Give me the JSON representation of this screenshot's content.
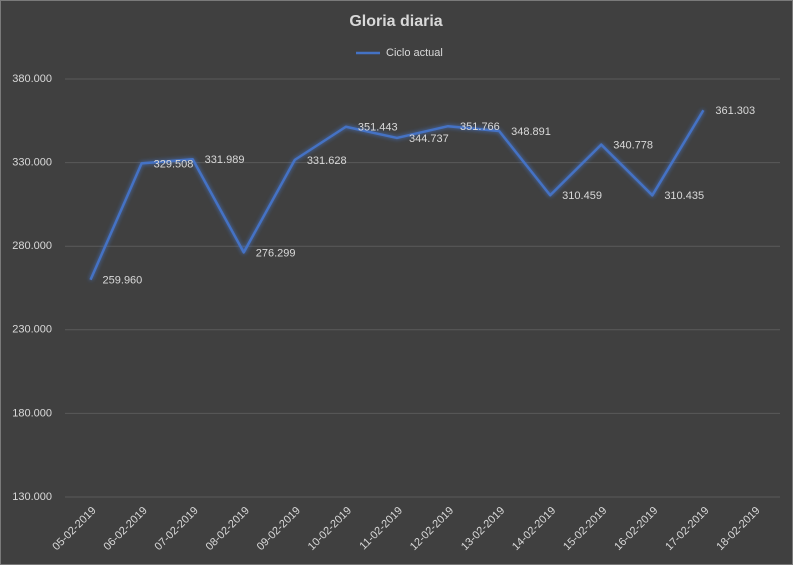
{
  "chart_data": {
    "type": "line",
    "title": "Gloria diaria",
    "categories": [
      "05-02-2019",
      "06-02-2019",
      "07-02-2019",
      "08-02-2019",
      "09-02-2019",
      "10-02-2019",
      "11-02-2019",
      "12-02-2019",
      "13-02-2019",
      "14-02-2019",
      "15-02-2019",
      "16-02-2019",
      "17-02-2019",
      "18-02-2019"
    ],
    "series": [
      {
        "name": "Ciclo actual",
        "color": "#4472c4",
        "values": [
          259960,
          329508,
          331989,
          276299,
          331628,
          351443,
          344737,
          351766,
          348891,
          310459,
          340778,
          310435,
          361303,
          null
        ],
        "value_labels": [
          "259.960",
          "329.508",
          "331.989",
          "276.299",
          "331.628",
          "351.443",
          "344.737",
          "351.766",
          "348.891",
          "310.459",
          "340.778",
          "310.435",
          "361.303",
          null
        ]
      }
    ],
    "ylim": [
      130000,
      380000
    ],
    "yticks": [
      {
        "value": 130000,
        "label": "130.000"
      },
      {
        "value": 180000,
        "label": "180.000"
      },
      {
        "value": 230000,
        "label": "230.000"
      },
      {
        "value": 280000,
        "label": "280.000"
      },
      {
        "value": 330000,
        "label": "330.000"
      },
      {
        "value": 380000,
        "label": "380.000"
      }
    ],
    "grid": true,
    "legend": "top"
  }
}
